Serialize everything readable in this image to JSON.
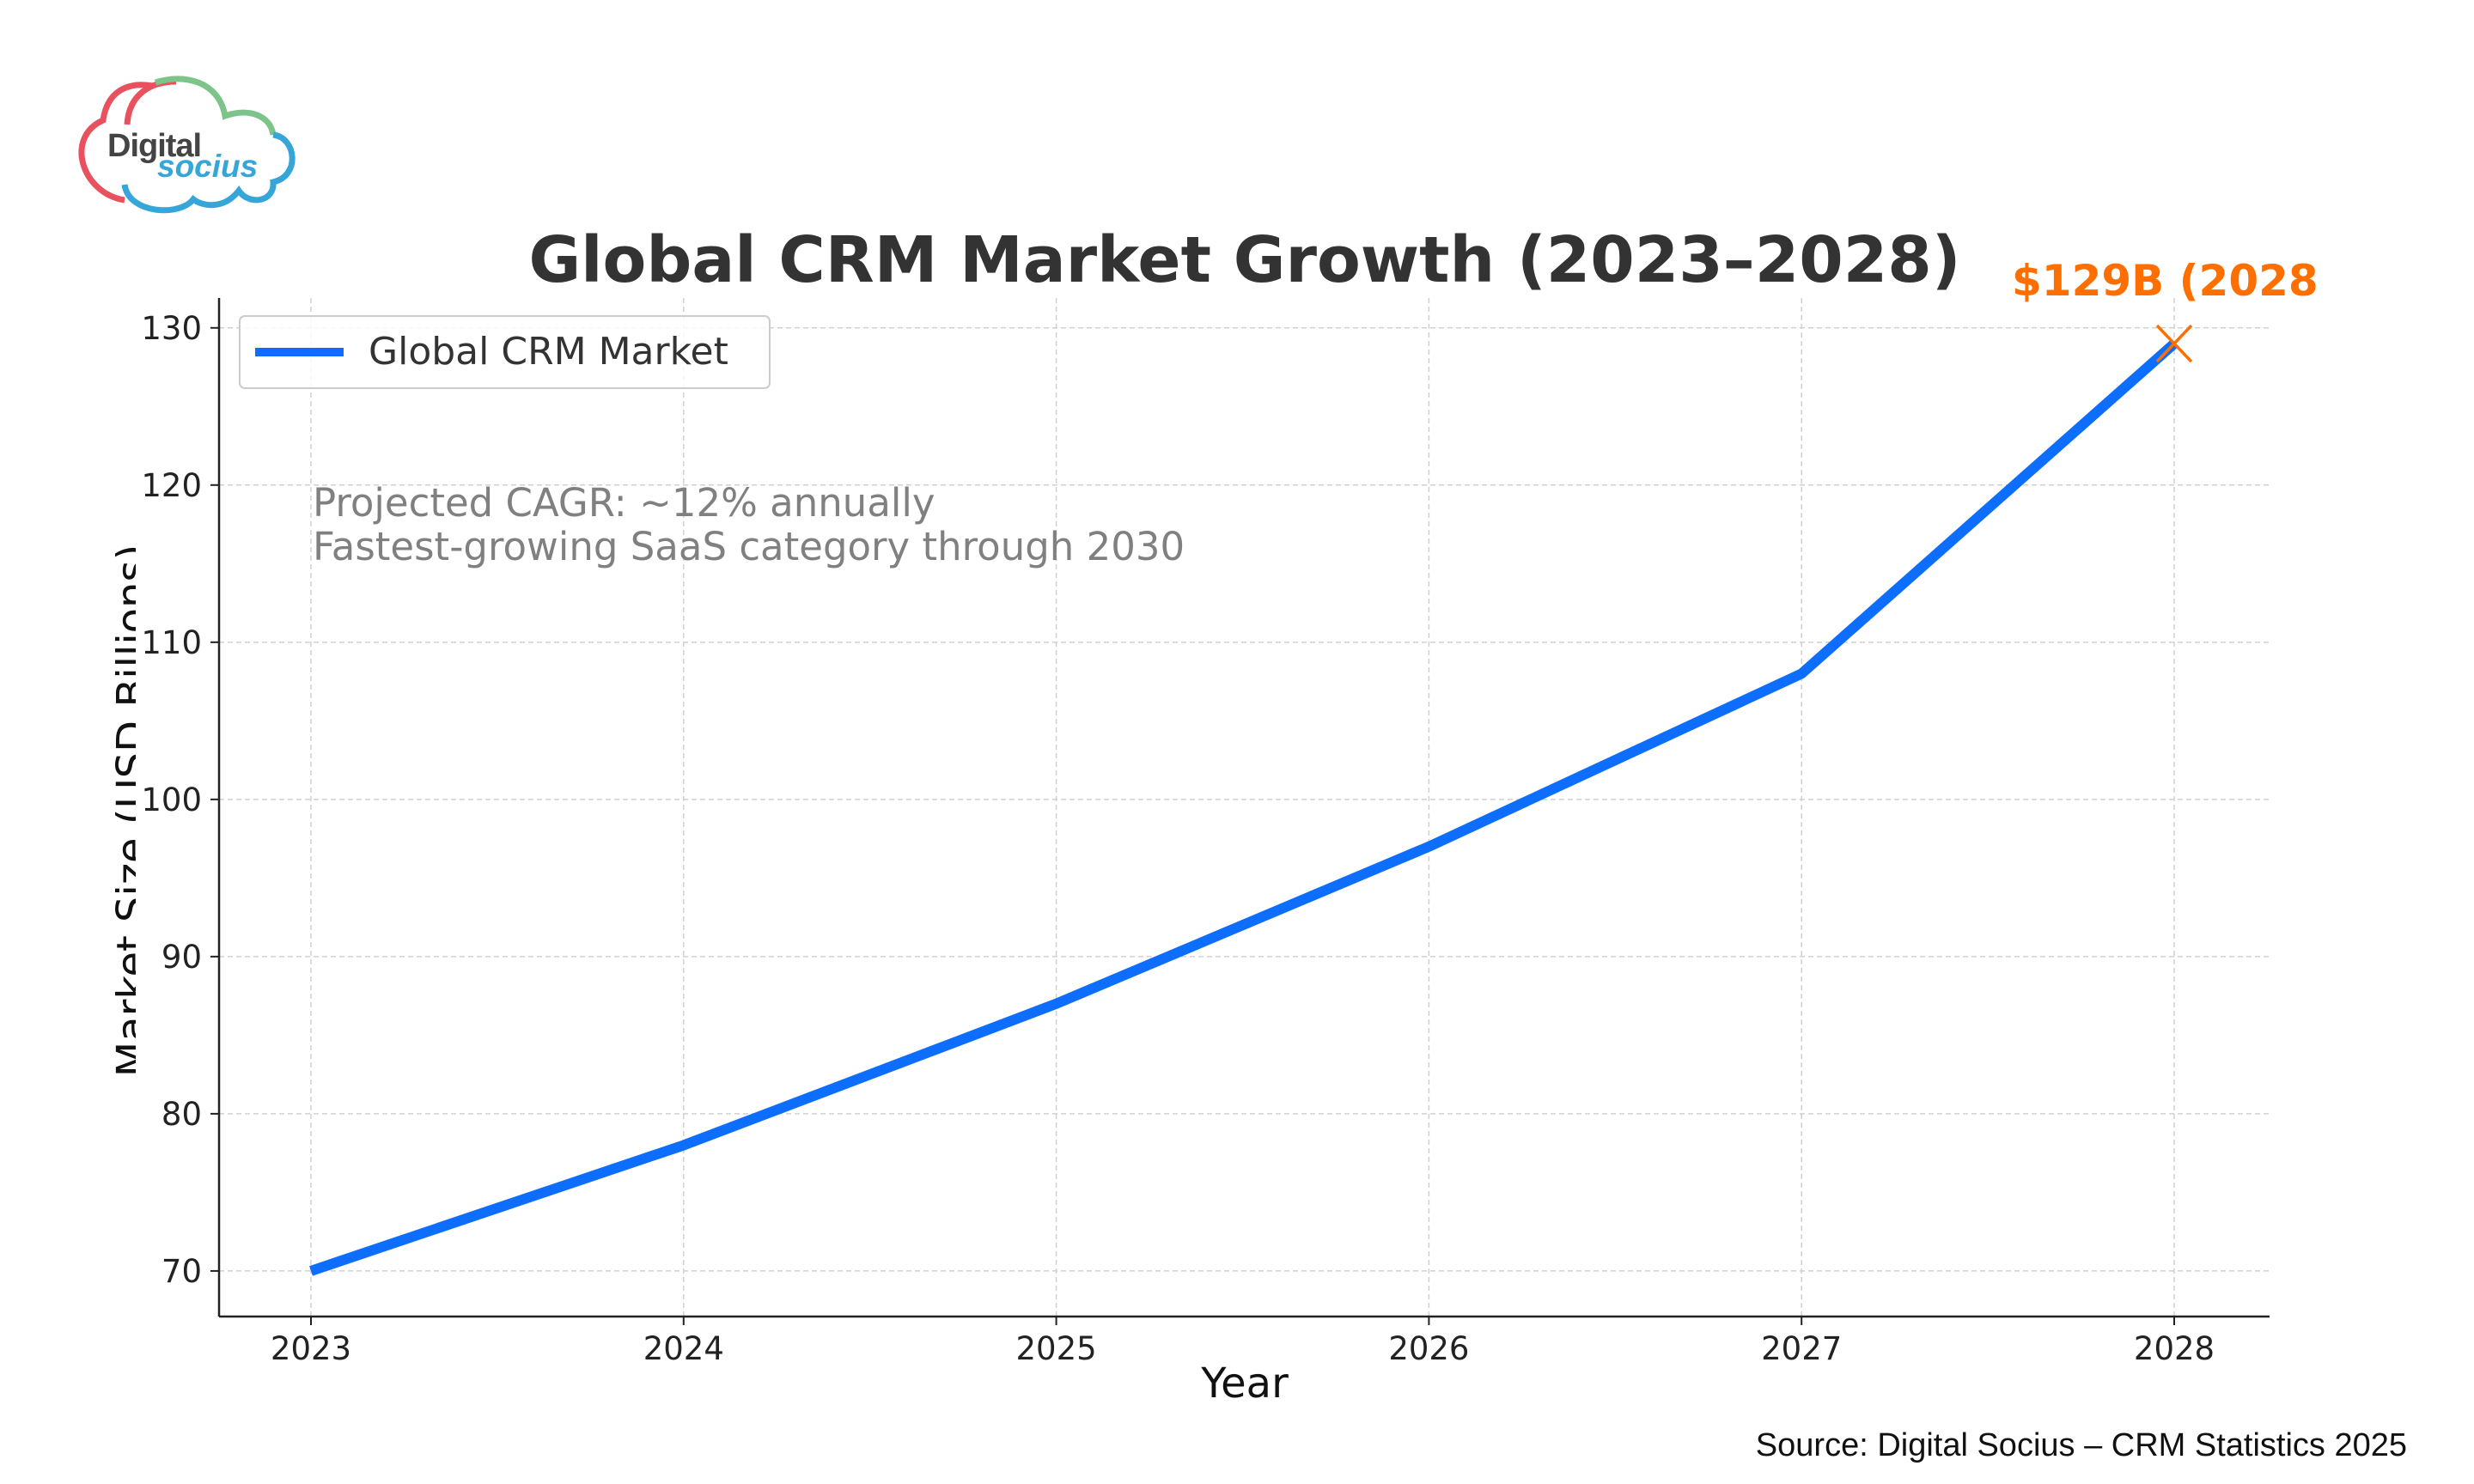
{
  "logo": {
    "word1": "Digital",
    "word2": "socius",
    "colors": [
      "#e8525f",
      "#7cc48a",
      "#36a6d9"
    ]
  },
  "chart_data": {
    "type": "line",
    "title": "Global CRM Market Growth (2023–2028)",
    "xlabel": "Year",
    "ylabel": "Market Size (USD Billions)",
    "categories": [
      "2023",
      "2024",
      "2025",
      "2026",
      "2027",
      "2028"
    ],
    "series": [
      {
        "name": "Global CRM Market",
        "values": [
          70,
          78,
          87,
          97,
          108,
          129
        ],
        "color": "#0d6efd"
      }
    ],
    "ylim": [
      67.1,
      131.9
    ],
    "yticks": [
      70,
      80,
      90,
      100,
      110,
      120,
      130
    ],
    "grid": true,
    "legend": "top-left",
    "highlight": {
      "x": "2028",
      "y": 129,
      "label": "$129B (2028",
      "color": "#ff6f00"
    },
    "annotation": [
      "Projected CAGR: ~12% annually",
      "Fastest-growing SaaS category through 2030"
    ],
    "source": "Source: Digital Socius – CRM Statistics 2025"
  }
}
